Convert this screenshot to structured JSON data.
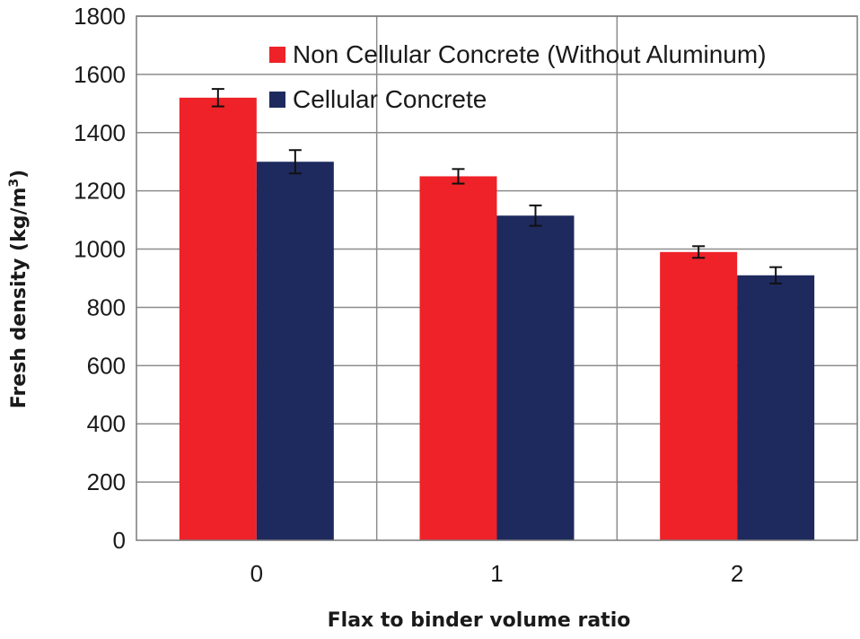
{
  "chart_data": {
    "type": "bar",
    "categories": [
      "0",
      "1",
      "2"
    ],
    "series": [
      {
        "name": "Non Cellular Concrete (Without Aluminum)",
        "color": "#ee2228",
        "values": [
          1520,
          1250,
          990
        ],
        "errors": [
          30,
          25,
          20
        ]
      },
      {
        "name": "Cellular Concrete",
        "color": "#1e2a5e",
        "values": [
          1300,
          1115,
          910
        ],
        "errors": [
          40,
          35,
          28
        ]
      }
    ],
    "xlabel": "Flax to binder volume ratio",
    "ylabel_main": "Fresh density (kg/m",
    "ylabel_sup": "3",
    "ylabel_tail": ")",
    "ylim": [
      0,
      1800
    ],
    "yticks": [
      "0",
      "200",
      "400",
      "600",
      "800",
      "1000",
      "1200",
      "1400",
      "1600",
      "1800"
    ],
    "grid": true,
    "legend_position": "top-right"
  }
}
